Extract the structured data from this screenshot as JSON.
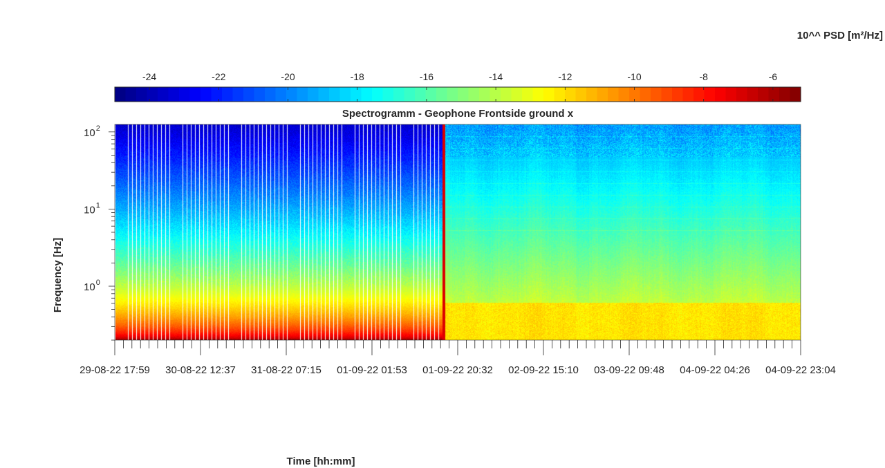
{
  "chart_data": {
    "type": "heatmap",
    "title": "Spectrogramm - Geophone Frontside ground x",
    "xlabel": "Time [hh:mm]",
    "ylabel": "Frequency [Hz]",
    "colorbar_label": "10^^ PSD [m²/Hz]",
    "colorbar_ticks": [
      "-24",
      "-22",
      "-20",
      "-18",
      "-16",
      "-14",
      "-12",
      "-10",
      "-8",
      "-6"
    ],
    "colorbar_values": [
      -24,
      -22,
      -20,
      -18,
      -16,
      -14,
      -12,
      -10,
      -8,
      -6
    ],
    "clim": [
      -25,
      -5.2
    ],
    "colormap": "jet",
    "x_tick_labels": [
      "29-08-22 17:59",
      "30-08-22 12:37",
      "31-08-22 07:15",
      "01-09-22 01:53",
      "01-09-22 20:32",
      "02-09-22 15:10",
      "03-09-22 09:48",
      "04-09-22 04:26",
      "04-09-22 23:04"
    ],
    "y_scale": "log",
    "y_tick_labels": [
      {
        "base": "10",
        "exp": "0"
      },
      {
        "base": "10",
        "exp": "1"
      },
      {
        "base": "10",
        "exp": "2"
      }
    ],
    "y_tick_values": [
      1,
      10,
      100
    ],
    "ylim": [
      0.2,
      125
    ],
    "regimes": [
      {
        "segment": "intermittent recording",
        "time_fraction": [
          0,
          0.478
        ],
        "psd_at_low_freq": -5.5,
        "psd_at_high_freq": -23.5
      },
      {
        "segment": "continuous recording",
        "time_fraction": [
          0.478,
          1
        ],
        "psd_at_low_freq": -12.3,
        "psd_at_high_freq": -19.5
      }
    ]
  }
}
